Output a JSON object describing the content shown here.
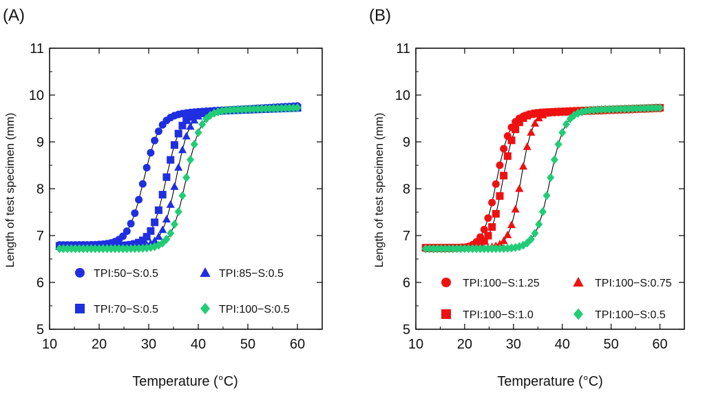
{
  "chart_data": [
    {
      "panel_label": "(A)",
      "type": "scatter",
      "xlabel": "Temperature (°C)",
      "ylabel": "Length of test specimen (mm)",
      "xlim": [
        10,
        65
      ],
      "ylim": [
        5,
        11
      ],
      "xticks": [
        10,
        20,
        30,
        40,
        50,
        60
      ],
      "yticks": [
        5,
        6,
        7,
        8,
        9,
        10,
        11
      ],
      "grid": false,
      "legend": "lower-left",
      "series": [
        {
          "name": "TPI:50−S:0.5",
          "marker": "circle",
          "color": "#1f2fe0",
          "low": 6.8,
          "high": 9.58,
          "t_mid": 29.0,
          "width": 1.6,
          "slope_high": 0.006
        },
        {
          "name": "TPI:70−S:0.5",
          "marker": "square",
          "color": "#1f2fe0",
          "low": 6.78,
          "high": 9.62,
          "t_mid": 33.5,
          "width": 1.5,
          "slope_high": 0.004
        },
        {
          "name": "TPI:85−S:0.5",
          "marker": "triangle",
          "color": "#1f2fe0",
          "low": 6.76,
          "high": 9.64,
          "t_mid": 35.5,
          "width": 1.4,
          "slope_high": 0.004
        },
        {
          "name": "TPI:100−S:0.5",
          "marker": "diamond",
          "color": "#22cc77",
          "low": 6.72,
          "high": 9.66,
          "t_mid": 37.5,
          "width": 1.5,
          "slope_high": 0.003
        }
      ]
    },
    {
      "panel_label": "(B)",
      "type": "scatter",
      "xlabel": "Temperature (°C)",
      "ylabel": "Length of test specimen (mm)",
      "xlim": [
        10,
        65
      ],
      "ylim": [
        5,
        11
      ],
      "xticks": [
        10,
        20,
        30,
        40,
        50,
        60
      ],
      "yticks": [
        5,
        6,
        7,
        8,
        9,
        10,
        11
      ],
      "grid": false,
      "legend": "lower-left",
      "series": [
        {
          "name": "TPI:100−S:1.25",
          "marker": "circle",
          "color": "#ee1111",
          "low": 6.72,
          "high": 9.58,
          "t_mid": 26.5,
          "width": 1.4,
          "slope_high": 0.004
        },
        {
          "name": "TPI:100−S:0.75",
          "marker": "triangle",
          "color": "#ee1111",
          "low": 6.74,
          "high": 9.62,
          "t_mid": 31.5,
          "width": 1.2,
          "slope_high": 0.004
        },
        {
          "name": "TPI:100−S:1.0",
          "marker": "square",
          "color": "#ee1111",
          "low": 6.74,
          "high": 9.6,
          "t_mid": 27.8,
          "width": 1.3,
          "slope_high": 0.004
        },
        {
          "name": "TPI:100−S:0.5",
          "marker": "diamond",
          "color": "#22cc77",
          "low": 6.72,
          "high": 9.66,
          "t_mid": 37.5,
          "width": 1.5,
          "slope_high": 0.003
        }
      ]
    }
  ]
}
